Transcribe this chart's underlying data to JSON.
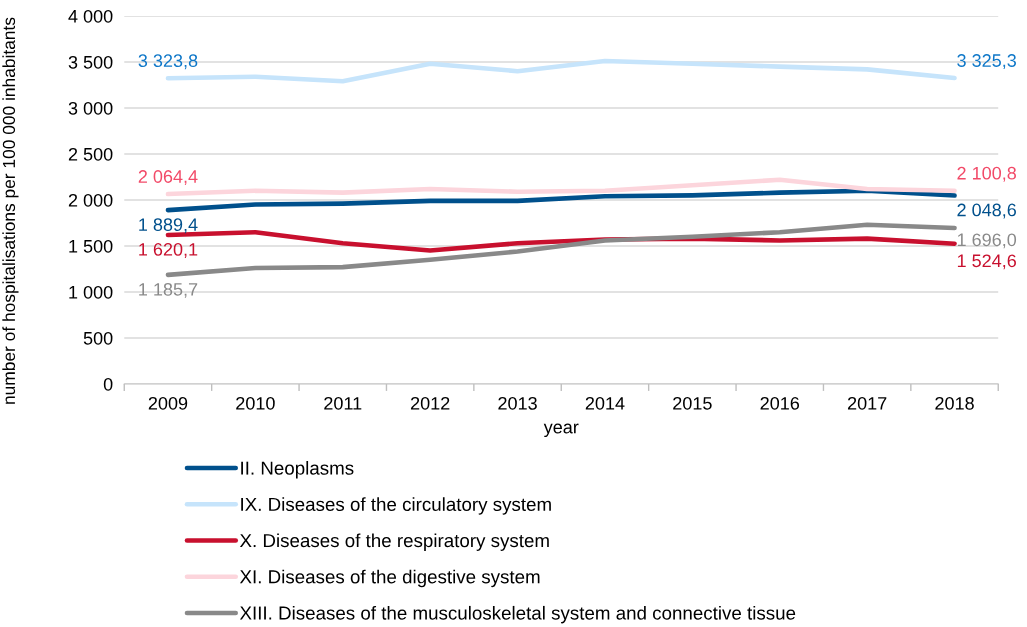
{
  "chart_data": {
    "type": "line",
    "xlabel": "year",
    "ylabel": "number of hospitalisations per 100 000 inhabitants",
    "categories": [
      "2009",
      "2010",
      "2011",
      "2012",
      "2013",
      "2014",
      "2015",
      "2016",
      "2017",
      "2018"
    ],
    "ylim": [
      0,
      4000
    ],
    "yticks": [
      0,
      500,
      {
        "value": 1000,
        "label": "1 000"
      },
      {
        "value": 1500,
        "label": "1 500"
      },
      {
        "value": 2000,
        "label": "2 000"
      },
      {
        "value": 2500,
        "label": "2 500"
      },
      {
        "value": 3000,
        "label": "3 000"
      },
      {
        "value": 3500,
        "label": "3 500"
      },
      {
        "value": 4000,
        "label": "4 000"
      }
    ],
    "grid": "y",
    "legend": "bottom",
    "series": [
      {
        "name": "II. Neoplasms",
        "color": "#00508c",
        "values": [
          1889.4,
          1950,
          1960,
          1990,
          1990,
          2040,
          2050,
          2080,
          2100,
          2048.6
        ],
        "value_labels": [
          "1 889,4",
          null,
          null,
          null,
          null,
          null,
          null,
          null,
          null,
          "2 048,6"
        ]
      },
      {
        "name": "IX. Diseases of the circulatory system",
        "color": "#c6e4fb",
        "values": [
          3323.8,
          3340,
          3290,
          3480,
          3400,
          3510,
          3480,
          3450,
          3420,
          3325.3
        ],
        "value_labels": [
          "3 323,8",
          null,
          null,
          null,
          null,
          null,
          null,
          null,
          null,
          "3 325,3"
        ]
      },
      {
        "name": "X. Diseases of the respiratory system",
        "color": "#c8102e",
        "values": [
          1620.1,
          1650,
          1530,
          1450,
          1530,
          1570,
          1580,
          1560,
          1580,
          1524.6
        ],
        "value_labels": [
          "1 620,1",
          null,
          null,
          null,
          null,
          null,
          null,
          null,
          null,
          "1 524,6"
        ]
      },
      {
        "name": "XI. Diseases of the digestive system",
        "color": "#fcd5dc",
        "values": [
          2064.4,
          2100,
          2080,
          2120,
          2090,
          2100,
          2160,
          2220,
          2120,
          2100.8
        ],
        "value_labels": [
          "2 064,4",
          null,
          null,
          null,
          null,
          null,
          null,
          null,
          null,
          "2 100,8"
        ]
      },
      {
        "name": "XIII. Diseases of the musculoskeletal system and connective tissue",
        "color": "#898989",
        "values": [
          1185.7,
          1260,
          1270,
          1350,
          1440,
          1560,
          1600,
          1650,
          1730,
          1696.0
        ],
        "value_labels": [
          "1 185,7",
          null,
          null,
          null,
          null,
          null,
          null,
          null,
          null,
          "1 696,0"
        ]
      }
    ]
  }
}
